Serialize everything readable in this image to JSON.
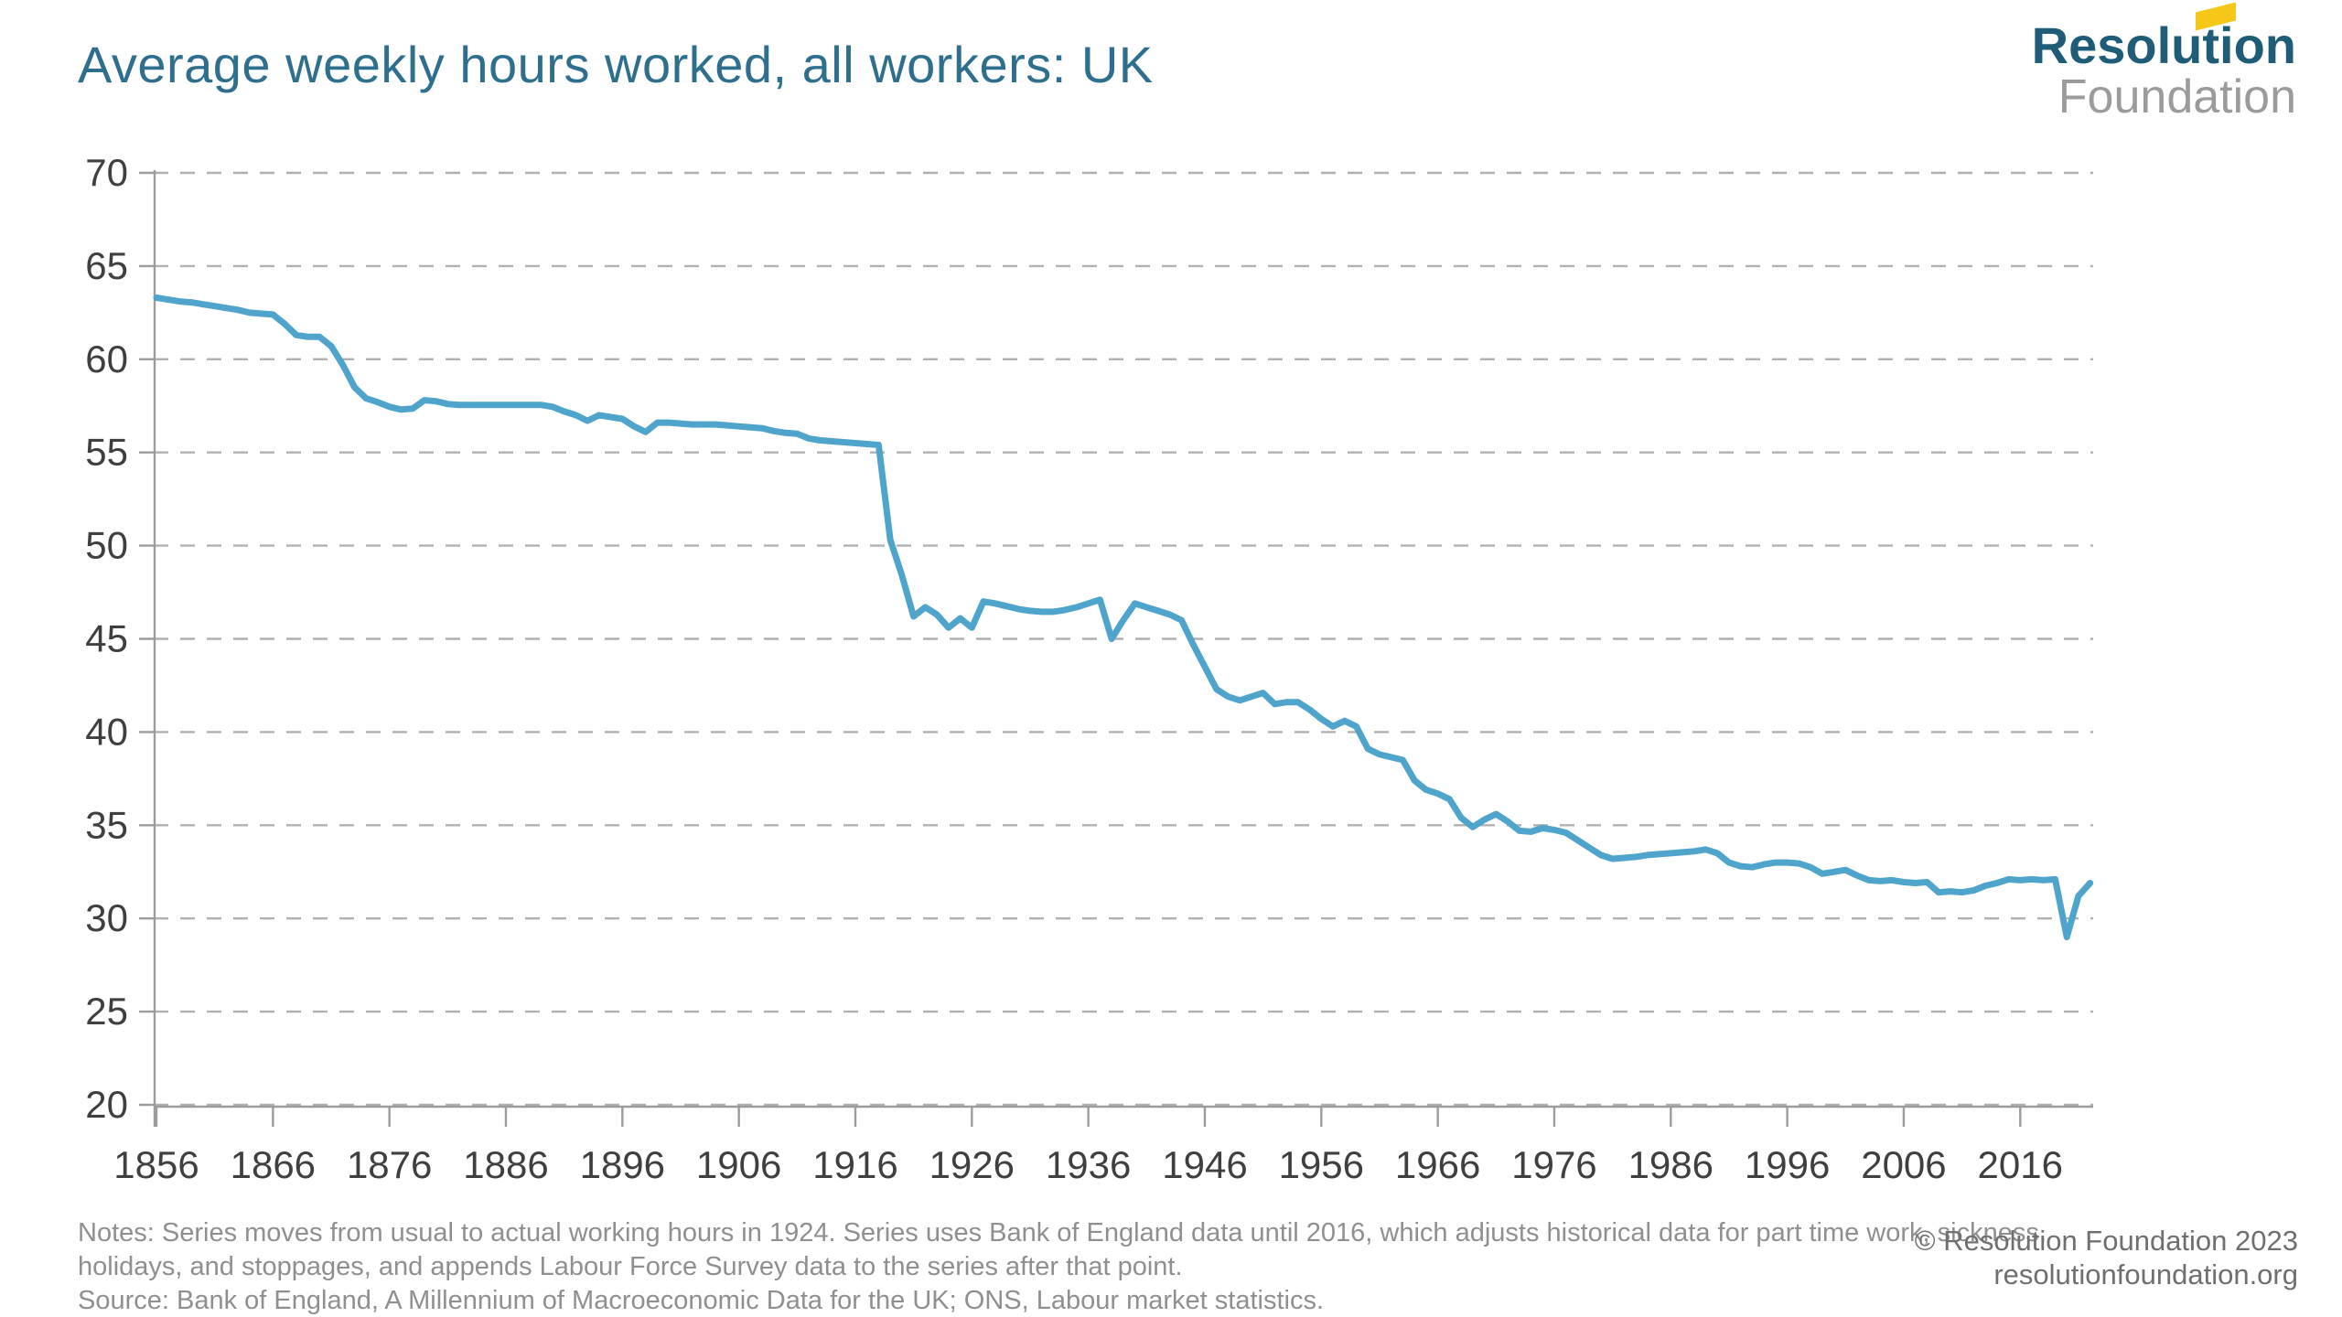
{
  "title": "Average weekly hours worked, all workers: UK",
  "logo": {
    "line1": "Resolution",
    "line2": "Foundation",
    "flag_icon_color": "#F5C718"
  },
  "footer": {
    "notes_line1": "Notes: Series moves from usual to actual working hours in 1924. Series uses Bank of England data until 2016, which adjusts historical data for part time work, sickness,",
    "notes_line2": "holidays, and stoppages, and appends Labour Force Survey data to the series after that point.",
    "source_line": "Source: Bank of England, A Millennium of Macroeconomic Data for the UK; ONS, Labour market statistics.",
    "copyright": "© Resolution Foundation 2023",
    "website": "resolutionfoundation.org"
  },
  "colors": {
    "title_text": "#2F6F8E",
    "logo_teal": "#1E5C78",
    "logo_gray": "#9B9B9B",
    "logo_flag": "#F5C718",
    "line": "#4FA4CC",
    "gridline": "#B0B0B0",
    "axis_line": "#9C9C9C",
    "axis_text": "#3F3F3F",
    "notes_text": "#8F8F8F",
    "copyright_text": "#6F6F6F",
    "background": "#FFFFFF"
  },
  "chart_data": {
    "type": "line",
    "title": "Average weekly hours worked, all workers: UK",
    "series_name": "Average weekly hours worked, all workers: UK",
    "legend": "none",
    "grid": "horizontal-dashed",
    "xlim": [
      1856,
      2022
    ],
    "ylim": [
      20,
      70
    ],
    "xticks": [
      1856,
      1866,
      1876,
      1886,
      1896,
      1906,
      1916,
      1926,
      1936,
      1946,
      1956,
      1966,
      1976,
      1986,
      1996,
      2006,
      2016
    ],
    "yticks": [
      20,
      25,
      30,
      35,
      40,
      45,
      50,
      55,
      60,
      65,
      70
    ],
    "line_color": "#4FA4CC",
    "years": [
      1856,
      1857,
      1858,
      1859,
      1860,
      1861,
      1862,
      1863,
      1864,
      1865,
      1866,
      1867,
      1868,
      1869,
      1870,
      1871,
      1872,
      1873,
      1874,
      1875,
      1876,
      1877,
      1878,
      1879,
      1880,
      1881,
      1882,
      1883,
      1884,
      1885,
      1886,
      1887,
      1888,
      1889,
      1890,
      1891,
      1892,
      1893,
      1894,
      1895,
      1896,
      1897,
      1898,
      1899,
      1900,
      1901,
      1902,
      1903,
      1904,
      1905,
      1906,
      1907,
      1908,
      1909,
      1910,
      1911,
      1912,
      1913,
      1914,
      1915,
      1916,
      1917,
      1918,
      1919,
      1920,
      1921,
      1922,
      1923,
      1924,
      1925,
      1926,
      1927,
      1928,
      1929,
      1930,
      1931,
      1932,
      1933,
      1934,
      1935,
      1936,
      1937,
      1938,
      1939,
      1940,
      1941,
      1942,
      1943,
      1944,
      1945,
      1946,
      1947,
      1948,
      1949,
      1950,
      1951,
      1952,
      1953,
      1954,
      1955,
      1956,
      1957,
      1958,
      1959,
      1960,
      1961,
      1962,
      1963,
      1964,
      1965,
      1966,
      1967,
      1968,
      1969,
      1970,
      1971,
      1972,
      1973,
      1974,
      1975,
      1976,
      1977,
      1978,
      1979,
      1980,
      1981,
      1982,
      1983,
      1984,
      1985,
      1986,
      1987,
      1988,
      1989,
      1990,
      1991,
      1992,
      1993,
      1994,
      1995,
      1996,
      1997,
      1998,
      1999,
      2000,
      2001,
      2002,
      2003,
      2004,
      2005,
      2006,
      2007,
      2008,
      2009,
      2010,
      2011,
      2012,
      2013,
      2014,
      2015,
      2016,
      2017,
      2018,
      2019,
      2020,
      2021,
      2022
    ],
    "values": [
      63.3,
      63.2,
      63.1,
      63.05,
      62.95,
      62.85,
      62.75,
      62.65,
      62.5,
      62.45,
      62.4,
      61.9,
      61.3,
      61.2,
      61.2,
      60.7,
      59.7,
      58.5,
      57.9,
      57.7,
      57.45,
      57.3,
      57.35,
      57.8,
      57.75,
      57.6,
      57.55,
      57.55,
      57.55,
      57.55,
      57.55,
      57.55,
      57.55,
      57.55,
      57.45,
      57.2,
      57.0,
      56.7,
      57.0,
      56.9,
      56.8,
      56.4,
      56.1,
      56.6,
      56.6,
      56.55,
      56.5,
      56.5,
      56.5,
      56.45,
      56.4,
      56.35,
      56.3,
      56.15,
      56.05,
      56.0,
      55.75,
      55.65,
      55.6,
      55.55,
      55.5,
      55.45,
      55.4,
      50.3,
      48.4,
      46.2,
      46.7,
      46.3,
      45.6,
      46.1,
      45.6,
      47.0,
      46.9,
      46.75,
      46.6,
      46.5,
      46.45,
      46.45,
      46.55,
      46.7,
      46.9,
      47.1,
      45.0,
      46.0,
      46.9,
      46.7,
      46.5,
      46.3,
      46.0,
      44.7,
      43.5,
      42.3,
      41.9,
      41.7,
      41.9,
      42.1,
      41.5,
      41.6,
      41.6,
      41.2,
      40.7,
      40.3,
      40.6,
      40.3,
      39.1,
      38.8,
      38.65,
      38.5,
      37.4,
      36.9,
      36.7,
      36.4,
      35.4,
      34.9,
      35.3,
      35.6,
      35.2,
      34.7,
      34.65,
      34.85,
      34.75,
      34.6,
      34.2,
      33.8,
      33.4,
      33.2,
      33.25,
      33.3,
      33.4,
      33.45,
      33.5,
      33.55,
      33.6,
      33.7,
      33.5,
      33.0,
      32.8,
      32.75,
      32.9,
      33.0,
      33.0,
      32.95,
      32.75,
      32.4,
      32.5,
      32.6,
      32.3,
      32.05,
      32.0,
      32.05,
      31.95,
      31.9,
      31.95,
      31.4,
      31.45,
      31.4,
      31.5,
      31.75,
      31.9,
      32.1,
      32.05,
      32.1,
      32.05,
      32.1,
      29.0,
      31.2,
      31.9
    ]
  }
}
